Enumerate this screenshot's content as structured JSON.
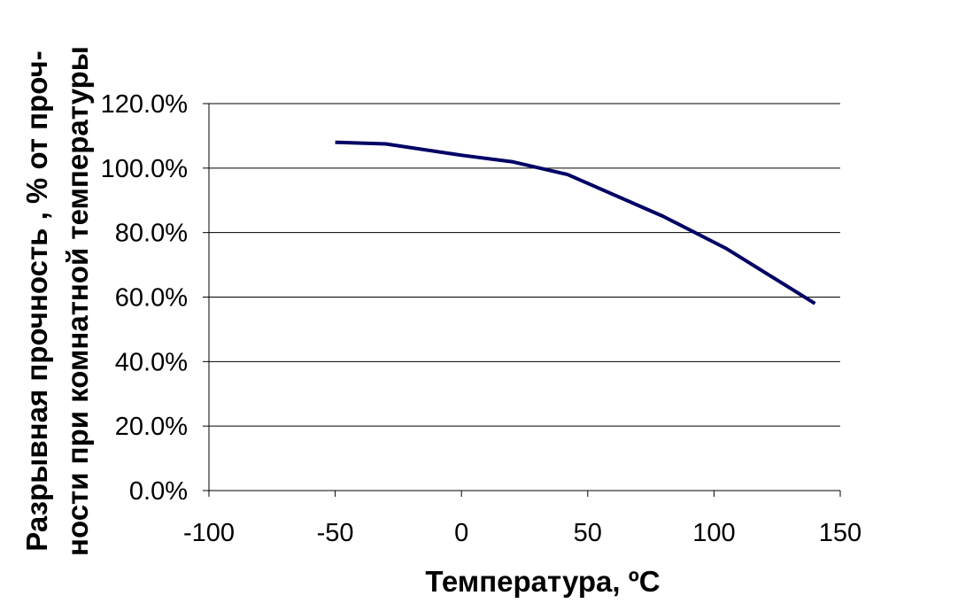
{
  "chart_data": {
    "type": "line",
    "title": "",
    "xlabel": "Температура, ºC",
    "ylabel_lines": [
      "Разрывная прочность , % от проч-",
      "ности при комнатной температуры"
    ],
    "xlim": [
      -100,
      150
    ],
    "ylim": [
      0,
      120
    ],
    "x_ticks": [
      -100,
      -50,
      0,
      50,
      100,
      150
    ],
    "x_tick_labels": [
      "-100",
      "-50",
      "0",
      "50",
      "100",
      "150"
    ],
    "y_ticks": [
      0,
      20,
      40,
      60,
      80,
      100,
      120
    ],
    "y_tick_labels": [
      "0.0%",
      "20.0%",
      "40.0%",
      "60.0%",
      "80.0%",
      "100.0%",
      "120.0%"
    ],
    "grid": "horizontal",
    "legend": "none",
    "series": [
      {
        "color": "#000066",
        "x": [
          -50,
          -30,
          0,
          20,
          42,
          80,
          105,
          140
        ],
        "y": [
          108,
          107.5,
          104,
          102,
          98,
          85,
          75,
          58
        ]
      }
    ]
  }
}
